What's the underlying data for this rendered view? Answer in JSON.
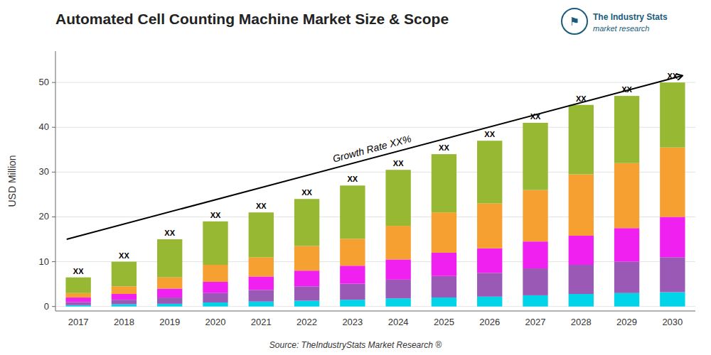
{
  "chart_data": {
    "type": "bar",
    "stacked": true,
    "title": "Automated Cell Counting Machine Market Size & Scope",
    "ylabel": "USD Million",
    "source": "Source: TheIndustryStats Market Research ®",
    "annotations": [
      "Growth Rate XX%"
    ],
    "logo": [
      "The Industry Stats",
      "market research",
      "⚑"
    ],
    "bar_label": "XX",
    "categories": [
      "2017",
      "2018",
      "2019",
      "2020",
      "2021",
      "2022",
      "2023",
      "2024",
      "2025",
      "2026",
      "2027",
      "2028",
      "2029",
      "2030"
    ],
    "series": [
      {
        "color": "#00d4e8",
        "values": [
          0.3,
          0.5,
          0.6,
          0.9,
          1.1,
          1.3,
          1.5,
          1.8,
          2.0,
          2.2,
          2.5,
          2.8,
          3.0,
          3.2
        ]
      },
      {
        "color": "#9b59b6",
        "values": [
          0.7,
          1.0,
          1.4,
          2.1,
          2.6,
          3.2,
          3.6,
          4.2,
          4.8,
          5.3,
          6.0,
          6.5,
          7.0,
          7.8
        ]
      },
      {
        "color": "#f020f0",
        "values": [
          1.0,
          1.3,
          2.0,
          2.5,
          3.0,
          3.5,
          4.0,
          4.5,
          5.2,
          5.5,
          6.0,
          6.5,
          7.5,
          9.0
        ]
      },
      {
        "color": "#f5a030",
        "values": [
          1.0,
          1.7,
          2.5,
          3.8,
          4.3,
          5.5,
          6.0,
          7.5,
          9.0,
          10.0,
          11.5,
          13.7,
          14.5,
          15.5
        ]
      },
      {
        "color": "#96b832",
        "values": [
          3.5,
          5.5,
          8.5,
          9.7,
          10.0,
          10.5,
          11.9,
          12.5,
          13.0,
          14.0,
          15.0,
          15.5,
          15.0,
          14.5
        ]
      }
    ],
    "ylim": [
      -1,
      57
    ],
    "yticks": [
      0,
      10,
      20,
      30,
      40,
      50
    ],
    "grid": true
  }
}
